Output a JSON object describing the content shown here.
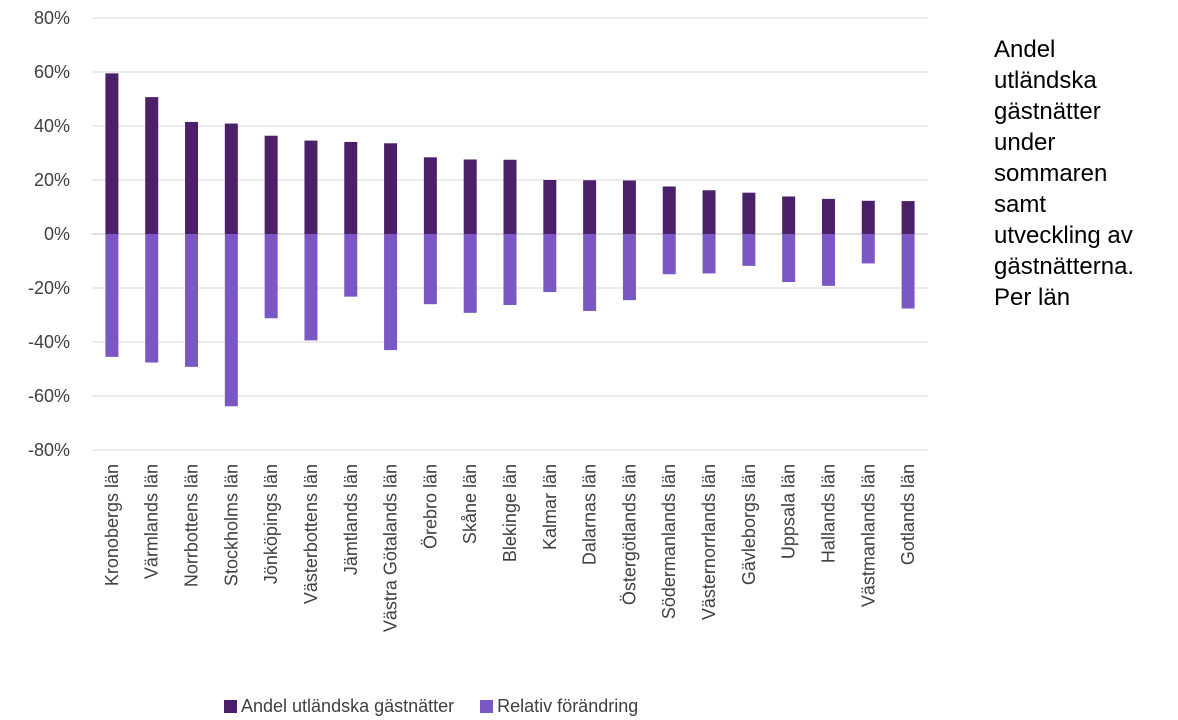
{
  "chart_data": {
    "type": "bar",
    "title_lines": [
      "Andel",
      "utländska",
      "gästnätter",
      "under",
      "sommaren",
      "samt",
      "utveckling av",
      "gästnätterna.",
      "Per län"
    ],
    "categories": [
      "Kronobergs län",
      "Värmlands län",
      "Norrbottens län",
      "Stockholms län",
      "Jönköpings län",
      "Västerbottens län",
      "Jämtlands län",
      "Västra Götalands län",
      "Örebro län",
      "Skåne län",
      "Blekinge län",
      "Kalmar län",
      "Dalarnas län",
      "Östergötlands län",
      "Södermanlands län",
      "Västernorrlands län",
      "Gävleborgs län",
      "Uppsala län",
      "Hallands län",
      "Västmanlands län",
      "Gotlands län"
    ],
    "series": [
      {
        "name": "Andel utländska gästnätter",
        "color": "#4b2068",
        "values": [
          59.5,
          50.7,
          41.5,
          40.9,
          36.4,
          34.6,
          34.1,
          33.6,
          28.4,
          27.6,
          27.5,
          20.0,
          19.9,
          19.8,
          17.6,
          16.2,
          15.3,
          13.9,
          13.0,
          12.3,
          12.2
        ]
      },
      {
        "name": "Relativ förändring",
        "color": "#7b57c3",
        "values": [
          -45.5,
          -47.6,
          -49.2,
          -63.8,
          -31.2,
          -39.4,
          -23.2,
          -43.0,
          -26.0,
          -29.2,
          -26.3,
          -21.5,
          -28.5,
          -24.5,
          -14.9,
          -14.6,
          -11.8,
          -17.8,
          -19.2,
          -10.9,
          -27.6
        ]
      }
    ],
    "ylim": [
      -80,
      80
    ],
    "y_ticks": [
      80,
      60,
      40,
      20,
      0,
      -20,
      -40,
      -60,
      -80
    ],
    "y_tick_labels": [
      "80%",
      "60%",
      "40%",
      "20%",
      "0%",
      "-20%",
      "-40%",
      "-60%",
      "-80%"
    ],
    "grid": true,
    "legend_position": "bottom"
  }
}
